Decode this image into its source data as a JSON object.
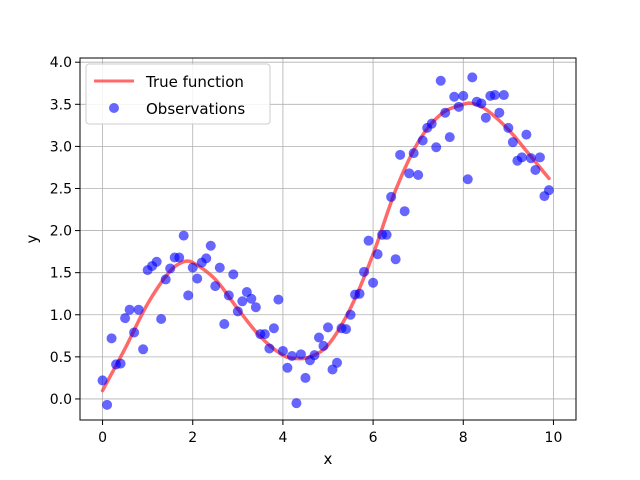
{
  "chart_data": {
    "type": "scatter",
    "title": "",
    "xlabel": "x",
    "ylabel": "y",
    "xlim": [
      -0.5,
      10.5
    ],
    "ylim": [
      -0.25,
      4.05
    ],
    "xticks": [
      0,
      2,
      4,
      6,
      8,
      10
    ],
    "yticks": [
      0.0,
      0.5,
      1.0,
      1.5,
      2.0,
      2.5,
      3.0,
      3.5,
      4.0
    ],
    "xtick_labels": [
      "0",
      "2",
      "4",
      "6",
      "8",
      "10"
    ],
    "ytick_labels": [
      "0.0",
      "0.5",
      "1.0",
      "1.5",
      "2.0",
      "2.5",
      "3.0",
      "3.5",
      "4.0"
    ],
    "grid": true,
    "legend_position": "top-left",
    "series": [
      {
        "name": "True function",
        "kind": "line",
        "color": "#ff4444",
        "x": [
          0,
          0.5,
          1,
          1.5,
          1.8,
          2,
          2.5,
          3,
          3.5,
          4,
          4.3,
          4.6,
          5,
          5.5,
          6,
          6.5,
          7,
          7.5,
          8,
          8.2,
          8.5,
          9,
          9.5,
          9.9
        ],
        "y": [
          0.1,
          0.6,
          1.13,
          1.52,
          1.63,
          1.62,
          1.42,
          1.07,
          0.74,
          0.52,
          0.48,
          0.5,
          0.64,
          1.08,
          1.72,
          2.48,
          3.05,
          3.38,
          3.5,
          3.51,
          3.44,
          3.2,
          2.88,
          2.62
        ]
      },
      {
        "name": "Observations",
        "kind": "scatter",
        "color": "#0000ff",
        "x": [
          0,
          0.1,
          0.2,
          0.3,
          0.4,
          0.5,
          0.6,
          0.7,
          0.8,
          0.9,
          1.0,
          1.1,
          1.2,
          1.3,
          1.4,
          1.5,
          1.6,
          1.7,
          1.8,
          1.9,
          2.0,
          2.1,
          2.2,
          2.3,
          2.4,
          2.5,
          2.6,
          2.7,
          2.8,
          2.9,
          3.0,
          3.1,
          3.2,
          3.3,
          3.4,
          3.5,
          3.6,
          3.7,
          3.8,
          3.9,
          4.0,
          4.1,
          4.2,
          4.3,
          4.4,
          4.5,
          4.6,
          4.7,
          4.8,
          4.9,
          5.0,
          5.1,
          5.2,
          5.3,
          5.4,
          5.5,
          5.6,
          5.7,
          5.8,
          5.9,
          6.0,
          6.1,
          6.2,
          6.3,
          6.4,
          6.5,
          6.6,
          6.7,
          6.8,
          6.9,
          7.0,
          7.1,
          7.2,
          7.3,
          7.4,
          7.5,
          7.6,
          7.7,
          7.8,
          7.9,
          8.0,
          8.1,
          8.2,
          8.3,
          8.4,
          8.5,
          8.6,
          8.7,
          8.8,
          8.9,
          9.0,
          9.1,
          9.2,
          9.3,
          9.4,
          9.5,
          9.6,
          9.7,
          9.8,
          9.9
        ],
        "y": [
          0.22,
          -0.07,
          0.72,
          0.41,
          0.42,
          0.96,
          1.06,
          0.79,
          1.06,
          0.59,
          1.53,
          1.58,
          1.63,
          0.95,
          1.42,
          1.55,
          1.68,
          1.68,
          1.94,
          1.23,
          1.56,
          1.43,
          1.62,
          1.67,
          1.82,
          1.34,
          1.56,
          0.89,
          1.23,
          1.48,
          1.04,
          1.16,
          1.27,
          1.19,
          1.09,
          0.77,
          0.77,
          0.6,
          0.84,
          1.18,
          0.57,
          0.37,
          0.51,
          -0.05,
          0.53,
          0.25,
          0.46,
          0.52,
          0.73,
          0.63,
          0.85,
          0.35,
          0.43,
          0.84,
          0.83,
          1.0,
          1.24,
          1.25,
          1.51,
          1.88,
          1.38,
          1.72,
          1.95,
          1.95,
          2.4,
          1.66,
          2.9,
          2.23,
          2.68,
          2.92,
          2.66,
          3.07,
          3.22,
          3.27,
          2.99,
          3.78,
          3.4,
          3.11,
          3.59,
          3.47,
          3.6,
          2.61,
          3.82,
          3.53,
          3.51,
          3.34,
          3.6,
          3.61,
          3.4,
          3.61,
          3.22,
          3.05,
          2.83,
          2.87,
          3.14,
          2.86,
          2.72,
          2.87,
          2.41,
          2.48
        ]
      }
    ]
  }
}
